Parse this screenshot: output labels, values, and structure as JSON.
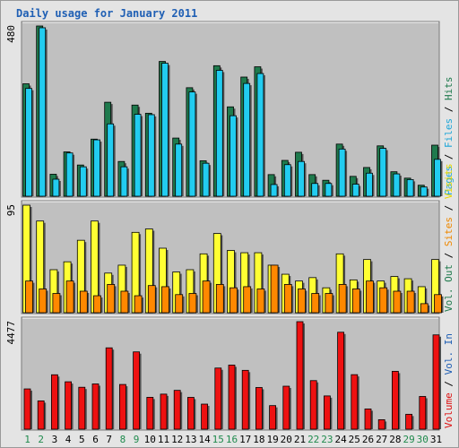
{
  "title": "Daily usage for January 2011",
  "colors": {
    "hits": "#1f7a4d",
    "files": "#22ccf0",
    "visits": "#ffff33",
    "sites": "#ff8800",
    "kbytes": "#ee1111",
    "legend_hits": "#1f7a4d",
    "legend_files": "#1da6d8",
    "legend_pages": "#1da6d8",
    "legend_visits": "#e6d800",
    "legend_sites": "#ee8800",
    "legend_vol_out": "#1f7a4d",
    "legend_vol_in": "#1f5fb4",
    "legend_volume": "#dd1111",
    "axis_blue": "#1f5fb4",
    "axis_green": "#1f8a4d"
  },
  "legend": {
    "top": [
      "Hits",
      "/",
      "Files",
      "/",
      "Pages"
    ],
    "middle": [
      "Visits",
      "/",
      "Sites",
      "/",
      "Vol. Out"
    ],
    "bottom": [
      "Vol. In",
      "/",
      "Volume"
    ]
  },
  "chart_data": [
    {
      "type": "bar",
      "panel": "hits-files",
      "ymax_label": "480",
      "ylim": [
        0,
        480
      ],
      "categories": [
        "1",
        "2",
        "3",
        "4",
        "5",
        "6",
        "7",
        "8",
        "9",
        "10",
        "11",
        "12",
        "13",
        "14",
        "15",
        "16",
        "17",
        "18",
        "19",
        "20",
        "21",
        "22",
        "23",
        "24",
        "25",
        "26",
        "27",
        "28",
        "29",
        "30",
        "31"
      ],
      "series": [
        {
          "name": "Hits",
          "values": [
            317,
            480,
            62,
            125,
            88,
            161,
            265,
            98,
            257,
            234,
            380,
            164,
            306,
            100,
            368,
            252,
            336,
            365,
            61,
            101,
            124,
            61,
            45,
            147,
            56,
            81,
            142,
            69,
            51,
            31,
            144
          ]
        },
        {
          "name": "Files",
          "values": [
            304,
            475,
            48,
            122,
            83,
            159,
            204,
            83,
            231,
            230,
            375,
            147,
            294,
            93,
            355,
            227,
            318,
            346,
            33,
            89,
            98,
            36,
            36,
            133,
            34,
            65,
            135,
            63,
            47,
            26,
            104
          ]
        }
      ]
    },
    {
      "type": "bar",
      "panel": "visits-sites",
      "ymax_label": "95",
      "ylim": [
        0,
        95
      ],
      "categories": [
        "1",
        "2",
        "3",
        "4",
        "5",
        "6",
        "7",
        "8",
        "9",
        "10",
        "11",
        "12",
        "13",
        "14",
        "15",
        "16",
        "17",
        "18",
        "19",
        "20",
        "21",
        "22",
        "23",
        "24",
        "25",
        "26",
        "27",
        "28",
        "29",
        "30",
        "31"
      ],
      "series": [
        {
          "name": "Visits",
          "values": [
            95,
            81,
            38,
            45,
            64,
            81,
            35,
            42,
            71,
            74,
            57,
            36,
            38,
            52,
            70,
            55,
            53,
            53,
            42,
            34,
            28,
            31,
            22,
            52,
            29,
            47,
            28,
            32,
            30,
            23,
            47
          ]
        },
        {
          "name": "Sites",
          "values": [
            28,
            21,
            17,
            28,
            19,
            15,
            25,
            19,
            15,
            24,
            23,
            16,
            17,
            28,
            25,
            22,
            23,
            21,
            42,
            25,
            21,
            17,
            17,
            25,
            21,
            28,
            22,
            19,
            19,
            8,
            16
          ]
        }
      ]
    },
    {
      "type": "bar",
      "panel": "volume",
      "ymax_label": "4477",
      "ylim": [
        0,
        4477
      ],
      "categories": [
        "1",
        "2",
        "3",
        "4",
        "5",
        "6",
        "7",
        "8",
        "9",
        "10",
        "11",
        "12",
        "13",
        "14",
        "15",
        "16",
        "17",
        "18",
        "19",
        "20",
        "21",
        "22",
        "23",
        "24",
        "25",
        "26",
        "27",
        "28",
        "29",
        "30",
        "31"
      ],
      "series": [
        {
          "name": "Volume",
          "values": [
            1677,
            1178,
            2266,
            1974,
            1746,
            1885,
            3388,
            1862,
            3219,
            1328,
            1460,
            1617,
            1325,
            1044,
            2546,
            2669,
            2450,
            1736,
            982,
            1790,
            4477,
            2023,
            1385,
            4037,
            2271,
            843,
            395,
            2409,
            621,
            1363,
            3927
          ]
        }
      ]
    }
  ]
}
